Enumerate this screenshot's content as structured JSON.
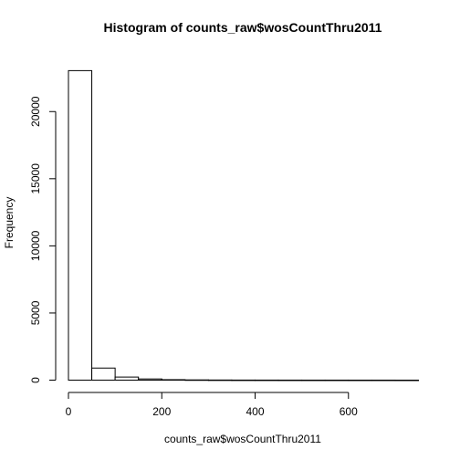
{
  "chart_data": {
    "type": "bar",
    "title": "Histogram of counts_raw$wosCountThru2011",
    "xlabel": "counts_raw$wosCountThru2011",
    "ylabel": "Frequency",
    "bin_width": 50,
    "bins_x0": [
      0,
      50,
      100,
      150,
      200,
      250,
      300,
      350,
      400,
      450,
      500,
      550,
      600,
      650,
      700
    ],
    "values": [
      23050,
      900,
      230,
      90,
      35,
      18,
      10,
      6,
      5,
      4,
      3,
      3,
      2,
      2,
      1
    ],
    "xlim": [
      0,
      750
    ],
    "ylim": [
      0,
      23050
    ],
    "x_ticks": [
      0,
      200,
      400,
      600
    ],
    "y_ticks": [
      0,
      5000,
      10000,
      15000,
      20000
    ],
    "x_tick_labels": [
      "0",
      "200",
      "400",
      "600"
    ],
    "y_tick_labels": [
      "0",
      "5000",
      "10000",
      "15000",
      "20000"
    ],
    "grid": false
  }
}
